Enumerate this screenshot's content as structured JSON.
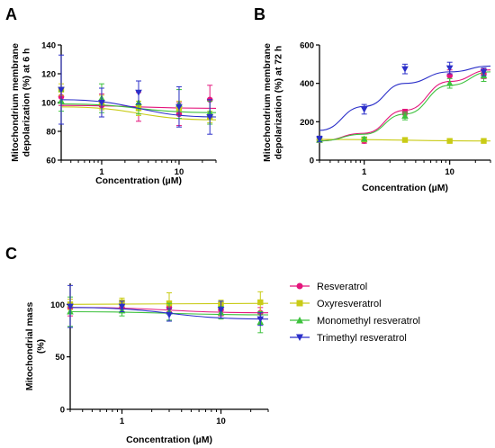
{
  "legend": {
    "placement": "bottom-right",
    "entries": [
      {
        "name": "Resveratrol",
        "color": "#e4157c",
        "marker": "circle"
      },
      {
        "name": "Oxyresveratrol",
        "color": "#c9cb16",
        "marker": "square"
      },
      {
        "name": "Monomethyl resveratrol",
        "color": "#3cc13c",
        "marker": "triangle-up"
      },
      {
        "name": "Trimethyl resveratrol",
        "color": "#2b2fc9",
        "marker": "triangle-down"
      }
    ]
  },
  "chart_data": [
    {
      "panel": "A",
      "type": "scatter",
      "xlabel": "Concentration (µM)",
      "ylabel": "Mitochondrium membrane depolarization (%) at 6 h",
      "xscale": "log",
      "xlim": [
        0.3,
        30
      ],
      "ylim": [
        60,
        140
      ],
      "xticks": [
        {
          "v": 1,
          "label": "1"
        },
        {
          "v": 10,
          "label": "10"
        }
      ],
      "yticks": [
        60,
        80,
        100,
        120,
        140
      ],
      "grid": false,
      "x": [
        0.3,
        1,
        3,
        10,
        25
      ],
      "series": [
        {
          "name": "Resveratrol",
          "values": [
            104,
            98,
            97,
            92,
            102
          ],
          "err": [
            6,
            8,
            10,
            8,
            10
          ],
          "fit": [
            [
              0.3,
              98
            ],
            [
              30,
              96
            ]
          ]
        },
        {
          "name": "Oxyresveratrol",
          "values": [
            109,
            100,
            96,
            96,
            90
          ],
          "err": [
            4,
            5,
            5,
            5,
            4
          ],
          "fit": [
            [
              0.3,
              97
            ],
            [
              30,
              88
            ]
          ]
        },
        {
          "name": "Monomethyl resveratrol",
          "values": [
            101,
            103,
            100,
            99,
            93
          ],
          "err": [
            7,
            10,
            8,
            10,
            8
          ],
          "fit": [
            [
              0.3,
              99
            ],
            [
              30,
              93
            ]
          ]
        },
        {
          "name": "Trimethyl resveratrol",
          "values": [
            109,
            100,
            107,
            97,
            90
          ],
          "err": [
            24,
            10,
            8,
            14,
            12
          ],
          "fit": [
            [
              0.3,
              102
            ],
            [
              30,
              90
            ]
          ]
        }
      ]
    },
    {
      "panel": "B",
      "type": "scatter",
      "xlabel": "Concentration (µM)",
      "ylabel": "Mitochondrium membrane depolarization (%) at 72 h",
      "xscale": "log",
      "xlim": [
        0.3,
        30
      ],
      "ylim": [
        0,
        600
      ],
      "xticks": [
        {
          "v": 1,
          "label": "1"
        },
        {
          "v": 10,
          "label": "10"
        }
      ],
      "yticks": [
        0,
        200,
        400,
        600
      ],
      "grid": false,
      "x": [
        0.3,
        1,
        3,
        10,
        25
      ],
      "series": [
        {
          "name": "Resveratrol",
          "values": [
            105,
            100,
            250,
            440,
            450
          ],
          "err": [
            10,
            12,
            15,
            30,
            25
          ],
          "fit": [
            [
              0.3,
              100
            ],
            [
              1,
              140
            ],
            [
              3,
              260
            ],
            [
              10,
              410
            ],
            [
              30,
              470
            ]
          ]
        },
        {
          "name": "Oxyresveratrol",
          "values": [
            105,
            108,
            105,
            100,
            100
          ],
          "err": [
            8,
            8,
            6,
            6,
            5
          ],
          "fit": [
            [
              0.3,
              108
            ],
            [
              30,
              100
            ]
          ]
        },
        {
          "name": "Monomethyl resveratrol",
          "values": [
            105,
            110,
            230,
            400,
            440
          ],
          "err": [
            10,
            10,
            20,
            25,
            30
          ],
          "fit": [
            [
              0.3,
              100
            ],
            [
              1,
              135
            ],
            [
              3,
              240
            ],
            [
              10,
              390
            ],
            [
              30,
              460
            ]
          ]
        },
        {
          "name": "Trimethyl resveratrol",
          "values": [
            110,
            265,
            475,
            480,
            460
          ],
          "err": [
            15,
            25,
            25,
            30,
            20
          ],
          "fit": [
            [
              0.3,
              155
            ],
            [
              1,
              280
            ],
            [
              3,
              400
            ],
            [
              10,
              460
            ],
            [
              30,
              490
            ]
          ]
        }
      ]
    },
    {
      "panel": "C",
      "type": "scatter",
      "xlabel": "Concentration (µM)",
      "ylabel": "Mitochondrial mass (%)",
      "xscale": "log",
      "xlim": [
        0.3,
        30
      ],
      "ylim": [
        0,
        120
      ],
      "xticks": [
        {
          "v": 1,
          "label": "1"
        },
        {
          "v": 10,
          "label": "10"
        }
      ],
      "yticks": [
        0,
        50,
        100
      ],
      "grid": false,
      "x": [
        0.3,
        1,
        3,
        10,
        25
      ],
      "series": [
        {
          "name": "Resveratrol",
          "values": [
            97,
            97,
            97,
            95,
            92
          ],
          "err": [
            8,
            4,
            4,
            6,
            5
          ],
          "fit": [
            [
              0.3,
              97
            ],
            [
              30,
              92
            ]
          ]
        },
        {
          "name": "Oxyresveratrol",
          "values": [
            100,
            102,
            101,
            100,
            102
          ],
          "err": [
            5,
            4,
            10,
            4,
            10
          ],
          "fit": [
            [
              0.3,
              100
            ],
            [
              30,
              101
            ]
          ]
        },
        {
          "name": "Monomethyl resveratrol",
          "values": [
            93,
            94,
            93,
            92,
            83
          ],
          "err": [
            14,
            5,
            8,
            6,
            10
          ],
          "fit": [
            [
              0.3,
              93
            ],
            [
              30,
              90
            ]
          ]
        },
        {
          "name": "Trimethyl resveratrol",
          "values": [
            98,
            98,
            90,
            95,
            86
          ],
          "err": [
            20,
            5,
            6,
            8,
            6
          ],
          "fit": [
            [
              0.3,
              97
            ],
            [
              30,
              86
            ]
          ]
        }
      ]
    }
  ]
}
